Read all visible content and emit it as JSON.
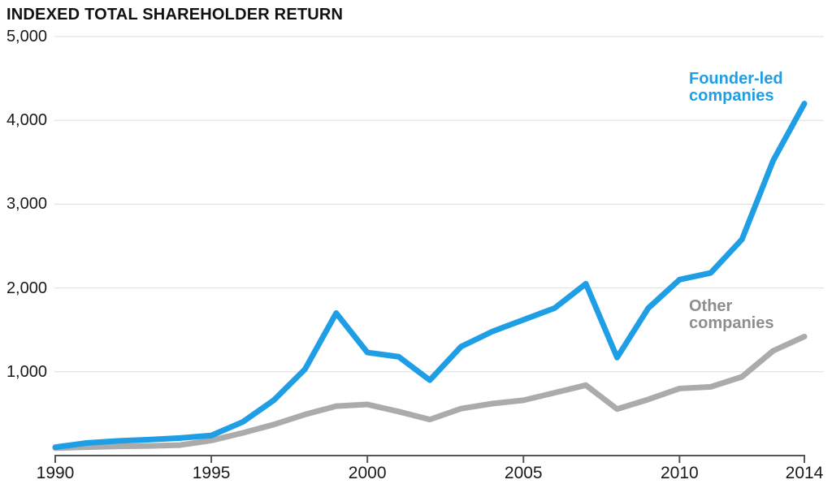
{
  "title": "INDEXED TOTAL SHAREHOLDER RETURN",
  "annotations": {
    "founder_led": "Founder-led\ncompanies",
    "other": "Other\ncompanies"
  },
  "colors": {
    "founder_led_line": "#1E9EE5",
    "founder_led_label": "#1E9EE5",
    "other_line": "#ABABAB",
    "other_label": "#8E8E8E",
    "gridline": "#DEDEDE",
    "axis": "#555555",
    "text": "#111111"
  },
  "chart_data": {
    "type": "line",
    "title": "INDEXED TOTAL SHAREHOLDER RETURN",
    "xlabel": "",
    "ylabel": "",
    "x": [
      1990,
      1991,
      1992,
      1993,
      1994,
      1995,
      1996,
      1997,
      1998,
      1999,
      2000,
      2001,
      2002,
      2003,
      2004,
      2005,
      2006,
      2007,
      2008,
      2009,
      2010,
      2011,
      2012,
      2013,
      2014
    ],
    "series": [
      {
        "name": "Founder-led companies",
        "color": "#1E9EE5",
        "values": [
          100,
          150,
          175,
          190,
          210,
          240,
          400,
          660,
          1030,
          1700,
          1230,
          1180,
          900,
          1300,
          1480,
          1620,
          1760,
          2050,
          1170,
          1760,
          2100,
          2180,
          2580,
          3520,
          4200
        ]
      },
      {
        "name": "Other companies",
        "color": "#ABABAB",
        "values": [
          90,
          100,
          110,
          115,
          125,
          180,
          270,
          370,
          490,
          590,
          610,
          525,
          430,
          560,
          620,
          660,
          750,
          840,
          555,
          670,
          800,
          820,
          940,
          1250,
          1420
        ]
      }
    ],
    "ylim": [
      0,
      5000
    ],
    "y_ticks": [
      1000,
      2000,
      3000,
      4000,
      5000
    ],
    "y_tick_labels": [
      "1,000",
      "2,000",
      "3,000",
      "4,000",
      "5,000"
    ],
    "x_ticks": [
      1990,
      1995,
      2000,
      2005,
      2010,
      2014
    ],
    "x_tick_labels": [
      "1990",
      "1995",
      "2000",
      "2005",
      "2010",
      "2014"
    ],
    "grid": "horizontal-only",
    "legend_position": "inline labels beside lines"
  }
}
